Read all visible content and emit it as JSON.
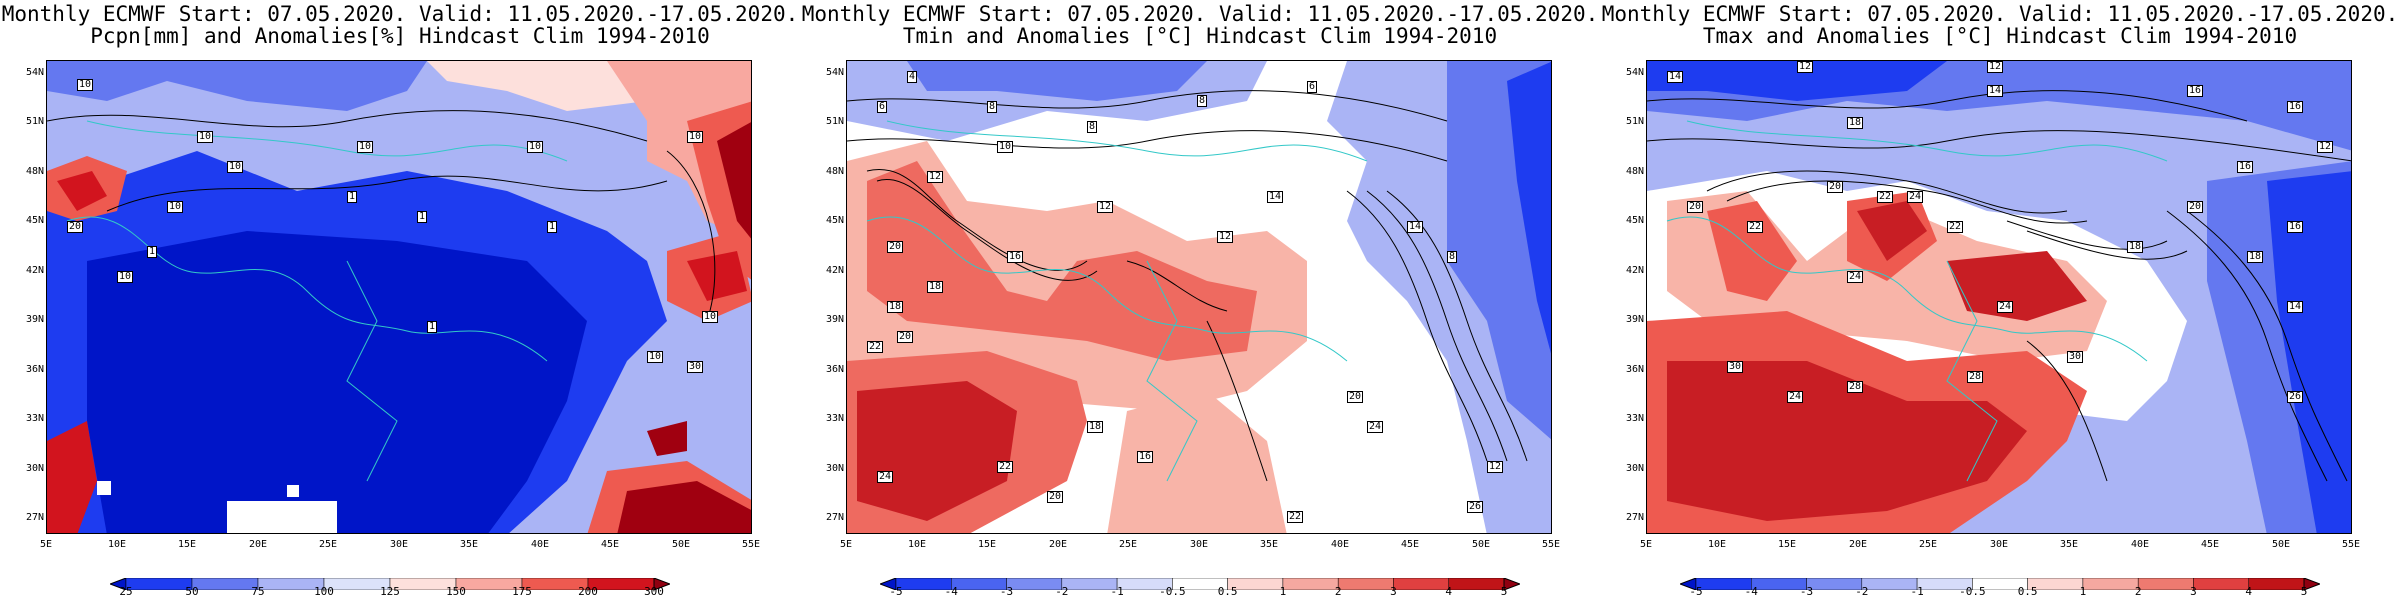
{
  "lat_ticks": [
    "54N",
    "51N",
    "48N",
    "45N",
    "42N",
    "39N",
    "36N",
    "33N",
    "30N",
    "27N"
  ],
  "lon_ticks": [
    "5E",
    "10E",
    "15E",
    "20E",
    "25E",
    "30E",
    "35E",
    "40E",
    "45E",
    "50E",
    "55E"
  ],
  "panels": [
    {
      "title_line1": "Monthly ECMWF Start: 07.05.2020. Valid: 11.05.2020.-17.05.2020.",
      "title_line2": "Pcpn[mm] and Anomalies[%] Hindcast Clim 1994-2010",
      "colorbar_labels": [
        "25",
        "50",
        "75",
        "100",
        "125",
        "150",
        "175",
        "200",
        "300"
      ],
      "colorbar_colors": [
        "#0015c8",
        "#1e3cf0",
        "#6478f0",
        "#aab4f5",
        "#dce2fa",
        "#fde0dc",
        "#f8a8a0",
        "#ee5a50",
        "#d2141e",
        "#900010"
      ],
      "contour_labels": [
        "10",
        "10",
        "10",
        "10",
        "10",
        "10",
        "10",
        "1",
        "1",
        "1",
        "1",
        "10",
        "1",
        "10",
        "30",
        "10",
        "20"
      ],
      "map_colors": {
        "deep": "#0015c8",
        "mid": "#1e3cf0",
        "light": "#6478f0",
        "pale": "#aab4f5",
        "red": "#e63c3c",
        "darkred": "#a00010",
        "white": "#ffffff"
      }
    },
    {
      "title_line1": "Monthly ECMWF Start: 07.05.2020. Valid: 11.05.2020.-17.05.2020.",
      "title_line2": "Tmin and Anomalies [°C] Hindcast Clim 1994-2010",
      "colorbar_labels": [
        "-5",
        "-4",
        "-3",
        "-2",
        "-1",
        "-0.5",
        "0.5",
        "1",
        "2",
        "3",
        "4",
        "5"
      ],
      "colorbar_colors": [
        "#0015c8",
        "#1e3cf0",
        "#4a64f0",
        "#7a8cf2",
        "#aab4f5",
        "#d6dcfa",
        "#ffffff",
        "#fcd6d2",
        "#f5a8a0",
        "#ee7a70",
        "#e04040",
        "#c01418",
        "#900010"
      ],
      "contour_labels": [
        "4",
        "6",
        "8",
        "8",
        "8",
        "6",
        "10",
        "12",
        "12",
        "14",
        "16",
        "12",
        "20",
        "18",
        "18",
        "22",
        "20",
        "24",
        "22",
        "20",
        "18",
        "16",
        "20",
        "22",
        "24",
        "26",
        "14",
        "12",
        "8"
      ],
      "map_colors": {
        "blue": "#6478f0",
        "pale": "#aab4f5",
        "white": "#ffffff",
        "pink": "#f8b4a8",
        "red": "#ee6a60",
        "darkred": "#c81e24"
      }
    },
    {
      "title_line1": "Monthly ECMWF Start: 07.05.2020. Valid: 11.05.2020.-17.05.2020.",
      "title_line2": "Tmax and Anomalies [°C] Hindcast Clim 1994-2010",
      "colorbar_labels": [
        "-5",
        "-4",
        "-3",
        "-2",
        "-1",
        "-0.5",
        "0.5",
        "1",
        "2",
        "3",
        "4",
        "5"
      ],
      "colorbar_colors": [
        "#0015c8",
        "#1e3cf0",
        "#4a64f0",
        "#7a8cf2",
        "#aab4f5",
        "#d6dcfa",
        "#ffffff",
        "#fcd6d2",
        "#f5a8a0",
        "#ee7a70",
        "#e04040",
        "#c01418",
        "#900010"
      ],
      "contour_labels": [
        "12",
        "14",
        "12",
        "14",
        "16",
        "16",
        "18",
        "20",
        "22",
        "24",
        "20",
        "22",
        "24",
        "22",
        "24",
        "30",
        "28",
        "24",
        "30",
        "28",
        "26",
        "20",
        "18",
        "16",
        "14",
        "12",
        "16",
        "18"
      ],
      "map_colors": {
        "deep": "#1e3cf0",
        "blue": "#6478f0",
        "pale": "#aab4f5",
        "white": "#ffffff",
        "pink": "#f8b4a8",
        "red": "#ee5a50",
        "darkred": "#c81e24"
      }
    }
  ]
}
